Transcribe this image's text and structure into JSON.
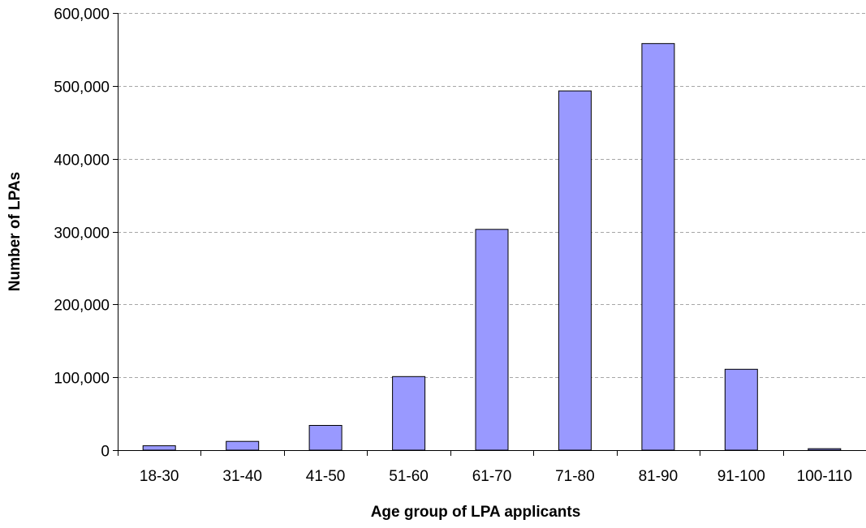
{
  "chart_data": {
    "type": "bar",
    "title": "",
    "xlabel": "Age group of LPA applicants",
    "ylabel": "Number of LPAs",
    "categories": [
      "18-30",
      "31-40",
      "41-50",
      "51-60",
      "61-70",
      "71-80",
      "81-90",
      "91-100",
      "100-110"
    ],
    "values": [
      6000,
      12000,
      34000,
      101000,
      303000,
      493000,
      558000,
      111000,
      2000
    ],
    "ylim": [
      0,
      600000
    ],
    "yticks": [
      0,
      100000,
      200000,
      300000,
      400000,
      500000,
      600000
    ],
    "ytick_labels": [
      "0",
      "100,000",
      "200,000",
      "300,000",
      "400,000",
      "500,000",
      "600,000"
    ],
    "grid": "horizontal dashed",
    "legend": "none",
    "bar_color": "#9999FF",
    "bar_edge_color": "#000000",
    "grid_color": "#A6A6A6"
  }
}
